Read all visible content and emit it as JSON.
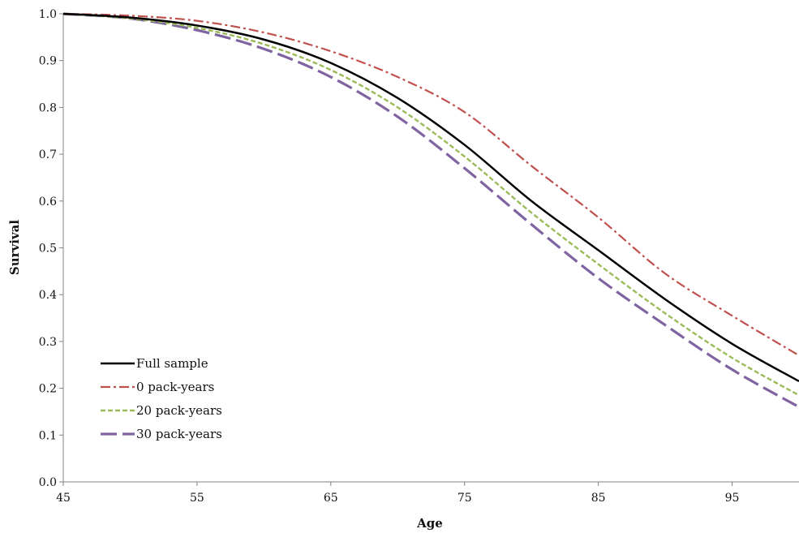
{
  "chart_data": {
    "type": "line",
    "title": "",
    "xlabel": "Age",
    "ylabel": "Survival",
    "xlim": [
      45,
      100
    ],
    "ylim": [
      0,
      1.0
    ],
    "x_ticks": [
      "45",
      "55",
      "65",
      "75",
      "85",
      "95"
    ],
    "y_ticks": [
      "0.0",
      "0.1",
      "0.2",
      "0.3",
      "0.4",
      "0.5",
      "0.6",
      "0.7",
      "0.8",
      "0.9",
      "1.0"
    ],
    "grid": false,
    "legend_position": "bottom-left",
    "x": [
      45,
      50,
      55,
      60,
      65,
      70,
      75,
      80,
      85,
      90,
      95,
      100
    ],
    "series": [
      {
        "name": "Full sample",
        "color": "#000000",
        "style": "solid",
        "values": [
          1.0,
          0.992,
          0.975,
          0.945,
          0.895,
          0.82,
          0.72,
          0.6,
          0.495,
          0.39,
          0.295,
          0.215
        ]
      },
      {
        "name": "0 pack-years",
        "color": "#C0504D",
        "style": "dash-dot",
        "values": [
          1.0,
          0.996,
          0.985,
          0.96,
          0.92,
          0.865,
          0.79,
          0.675,
          0.565,
          0.445,
          0.355,
          0.27
        ]
      },
      {
        "name": "20 pack-years",
        "color": "#9BBB59",
        "style": "short-dash",
        "values": [
          1.0,
          0.99,
          0.97,
          0.935,
          0.88,
          0.8,
          0.695,
          0.575,
          0.465,
          0.36,
          0.265,
          0.185
        ]
      },
      {
        "name": "30 pack-years",
        "color": "#8064A2",
        "style": "long-dash",
        "values": [
          1.0,
          0.99,
          0.965,
          0.925,
          0.865,
          0.78,
          0.67,
          0.55,
          0.435,
          0.335,
          0.24,
          0.16
        ]
      }
    ]
  }
}
